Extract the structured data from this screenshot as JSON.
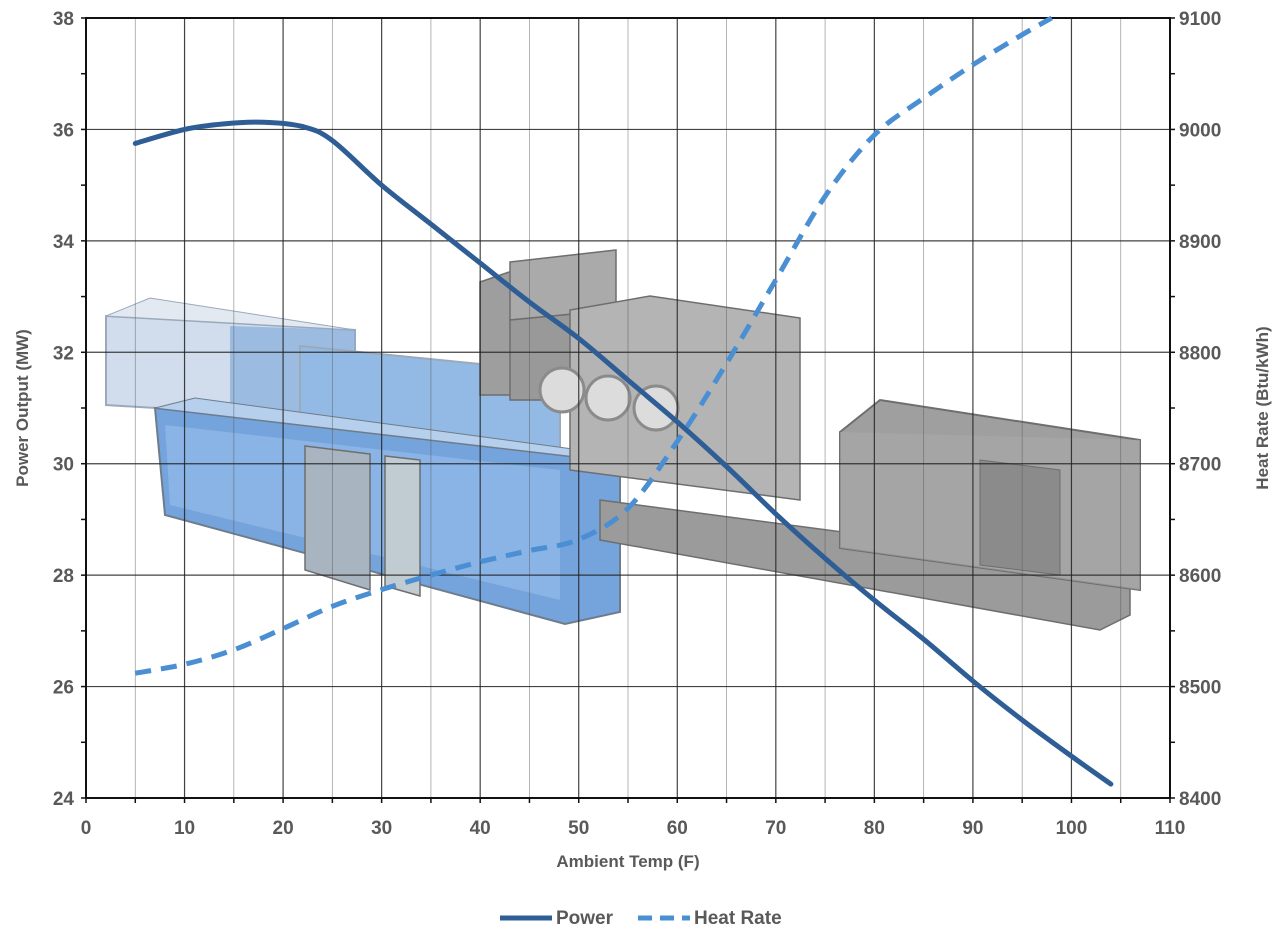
{
  "chart_data": {
    "type": "line",
    "xlabel": "Ambient Temp (F)",
    "ylabel": "Power Output (MW)",
    "y2label": "Heat Rate (Btu/kWh)",
    "xlim": [
      0,
      110
    ],
    "ylim": [
      24,
      38
    ],
    "y2lim": [
      8400,
      9100
    ],
    "xticks": [
      "0",
      "10",
      "20",
      "30",
      "40",
      "50",
      "60",
      "70",
      "80",
      "90",
      "100",
      "110"
    ],
    "yticks": [
      "24",
      "26",
      "28",
      "30",
      "32",
      "34",
      "36",
      "38"
    ],
    "y2ticks": [
      "8400",
      "8500",
      "8600",
      "8700",
      "8800",
      "8900",
      "9000",
      "9100"
    ],
    "grid": true,
    "legend": "bottom-center",
    "background_image": "genset-equipment-illustration",
    "series": [
      {
        "name": "Power",
        "axis": "left",
        "style": "solid",
        "color": "#2e5e95",
        "x": [
          5,
          10,
          14,
          18,
          22,
          25,
          30,
          35,
          40,
          45,
          50,
          55,
          60,
          65,
          70,
          75,
          80,
          85,
          90,
          95,
          100,
          104
        ],
        "y": [
          35.75,
          36.0,
          36.1,
          36.13,
          36.05,
          35.8,
          35.0,
          34.3,
          33.6,
          32.9,
          32.25,
          31.5,
          30.75,
          29.95,
          29.1,
          28.3,
          27.55,
          26.85,
          26.1,
          25.4,
          24.75,
          24.25
        ]
      },
      {
        "name": "Heat Rate",
        "axis": "right",
        "style": "dashed",
        "color": "#4a8fd4",
        "x": [
          5,
          10,
          15,
          20,
          25,
          30,
          35,
          40,
          45,
          50,
          55,
          60,
          65,
          70,
          75,
          80,
          85,
          90,
          95,
          98
        ],
        "y": [
          8512,
          8520,
          8533,
          8552,
          8572,
          8587,
          8600,
          8612,
          8622,
          8632,
          8660,
          8720,
          8790,
          8865,
          8940,
          8995,
          9028,
          9058,
          9085,
          9100
        ]
      }
    ]
  }
}
